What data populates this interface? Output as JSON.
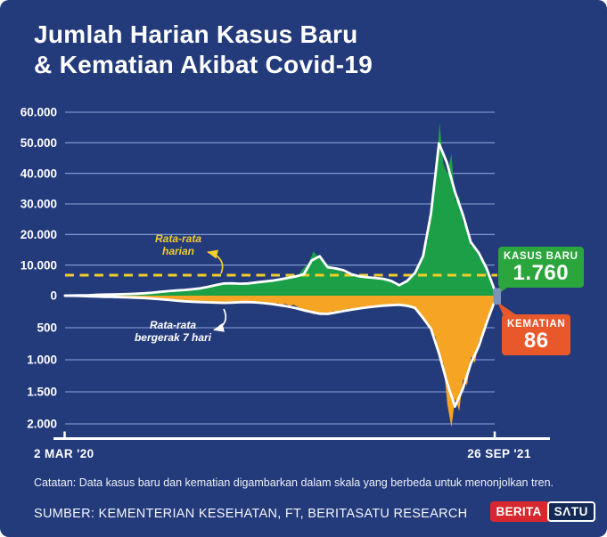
{
  "title": {
    "line1": "Jumlah Harian Kasus Baru",
    "line2": "& Kematian Akibat Covid-19"
  },
  "colors": {
    "background": "#233A7B",
    "grid": "#89A5DA",
    "cases_area": "#1BA047",
    "deaths_area": "#F6A424",
    "avg_line": "#F2CD2B",
    "white_line": "#FFFFFF",
    "cases_badge": "#2BA63C",
    "deaths_badge": "#E9582B",
    "endpoint_marker": "#7E93BA",
    "logo_red": "#D7282F",
    "logo_navy": "#132A56"
  },
  "chart_data": {
    "type": "area",
    "title": "Jumlah Harian Kasus Baru & Kematian Akibat Covid-19",
    "x_axis": {
      "start_label": "2 MAR '20",
      "end_label": "26 SEP '21"
    },
    "y_axis_cases_max": 60000,
    "y_axis_deaths_max": 2000,
    "y_ticks_cases": {
      "labels": [
        "60.000",
        "50.000",
        "40.000",
        "30.000",
        "20.000",
        "10.000",
        "0"
      ],
      "values": [
        60000,
        50000,
        40000,
        30000,
        20000,
        10000,
        0
      ]
    },
    "y_ticks_deaths": {
      "labels": [
        "500",
        "1.000",
        "1.500",
        "2.000"
      ],
      "values": [
        500,
        1000,
        1500,
        2000
      ]
    },
    "avg_line_value": 6700,
    "annotations": {
      "daily_avg": {
        "line1": "Rata-rata",
        "line2": "harian"
      },
      "moving_avg": {
        "line1": "Rata-rata",
        "line2": "bergerak 7 hari"
      }
    },
    "callouts": {
      "cases": {
        "label": "KASUS BARU",
        "value": "1.760"
      },
      "deaths": {
        "label": "KEMATIAN",
        "value": "86"
      }
    },
    "series": [
      {
        "name": "cases_daily",
        "values": [
          0,
          20,
          50,
          90,
          110,
          130,
          140,
          180,
          300,
          250,
          340,
          380,
          430,
          400,
          490,
          520,
          560,
          600,
          680,
          720,
          850,
          780,
          1050,
          960,
          1300,
          1180,
          1520,
          1450,
          1750,
          1640,
          1900,
          1780,
          2150,
          2050,
          2500,
          2300,
          3000,
          2800,
          3600,
          3400,
          4200,
          3800,
          4250,
          3900,
          4050,
          3700,
          4300,
          3900,
          4600,
          4100,
          4800,
          4400,
          5300,
          4900,
          5600,
          5600,
          6300,
          5700,
          6700,
          6100,
          8300,
          9600,
          11200,
          14500,
          13000,
          12800,
          10700,
          9900,
          9200,
          8500,
          8000,
          7300,
          7600,
          6700,
          6900,
          6100,
          6300,
          5700,
          6200,
          5500,
          5800,
          5100,
          5600,
          4300,
          3300,
          3900,
          3700,
          5300,
          6500,
          8300,
          9600,
          14500,
          18000,
          29500,
          36000,
          56700,
          43000,
          40000,
          46500,
          31000,
          32500,
          23500,
          24000,
          16000,
          16800,
          12500,
          12200,
          7600,
          6300,
          1760
        ]
      },
      {
        "name": "cases_avg_7d",
        "values": [
          0,
          60,
          110,
          160,
          300,
          350,
          420,
          480,
          550,
          650,
          800,
          1000,
          1250,
          1500,
          1700,
          1850,
          2100,
          2400,
          2900,
          3500,
          4000,
          4050,
          3900,
          4000,
          4300,
          4600,
          4900,
          5300,
          5800,
          6300,
          7000,
          11500,
          12900,
          9300,
          8900,
          8300,
          7000,
          6300,
          6000,
          5800,
          5500,
          4800,
          3400,
          4800,
          7500,
          13000,
          27000,
          49800,
          43500,
          34000,
          26500,
          17500,
          14000,
          8800,
          1760
        ]
      },
      {
        "name": "deaths_daily",
        "values": [
          0,
          1,
          3,
          6,
          8,
          12,
          10,
          16,
          14,
          19,
          17,
          22,
          19,
          26,
          22,
          30,
          26,
          34,
          30,
          38,
          34,
          44,
          38,
          52,
          46,
          60,
          54,
          70,
          62,
          80,
          72,
          88,
          78,
          95,
          85,
          100,
          92,
          108,
          96,
          112,
          100,
          118,
          104,
          115,
          100,
          112,
          98,
          108,
          95,
          110,
          100,
          118,
          108,
          128,
          118,
          140,
          128,
          155,
          142,
          175,
          200,
          260,
          230,
          290,
          260,
          310,
          265,
          300,
          240,
          275,
          220,
          250,
          200,
          230,
          185,
          205,
          165,
          190,
          152,
          175,
          140,
          165,
          135,
          158,
          130,
          160,
          140,
          175,
          190,
          230,
          290,
          380,
          420,
          580,
          640,
          1000,
          1050,
          1700,
          2050,
          1600,
          1800,
          1300,
          1400,
          950,
          1050,
          700,
          650,
          350,
          300,
          86
        ]
      },
      {
        "name": "deaths_avg_7d",
        "values": [
          0,
          2,
          6,
          10,
          14,
          18,
          20,
          24,
          28,
          32,
          38,
          46,
          55,
          65,
          78,
          88,
          95,
          100,
          104,
          108,
          112,
          108,
          102,
          100,
          106,
          116,
          130,
          148,
          168,
          195,
          228,
          255,
          280,
          285,
          262,
          240,
          220,
          200,
          182,
          168,
          155,
          148,
          142,
          158,
          190,
          350,
          520,
          900,
          1350,
          1730,
          1450,
          1060,
          790,
          420,
          86
        ]
      }
    ]
  },
  "footer": {
    "note": "Catatan: Data kasus baru dan kematian digambarkan dalam skala yang berbeda untuk menonjolkan tren.",
    "source": "SUMBER: KEMENTERIAN KESEHATAN, FT, BERITASATU RESEARCH"
  },
  "logo": {
    "part1": "BERITA",
    "part2": "SΛTU"
  }
}
